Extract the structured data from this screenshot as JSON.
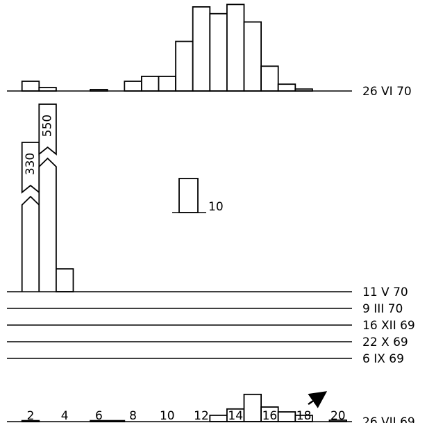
{
  "chart_data": {
    "type": "bar",
    "xticks": [
      2,
      4,
      6,
      8,
      10,
      12,
      14,
      16,
      18,
      20
    ],
    "x_range": [
      1,
      21
    ],
    "bin_width": 1,
    "y_scale_bar_value": 10,
    "y_scale_bar_label": "10",
    "series": [
      {
        "name": "26 VI 70",
        "bins": [
          {
            "x": 2,
            "value": 2
          },
          {
            "x": 3,
            "value": 0.7
          },
          {
            "x": 6,
            "value": 0.3
          },
          {
            "x": 8,
            "value": 2
          },
          {
            "x": 9,
            "value": 3
          },
          {
            "x": 10,
            "value": 3
          },
          {
            "x": 11,
            "value": 10.2
          },
          {
            "x": 12,
            "value": 17.3
          },
          {
            "x": 13,
            "value": 15.9
          },
          {
            "x": 14,
            "value": 17.8
          },
          {
            "x": 15,
            "value": 14.2
          },
          {
            "x": 16,
            "value": 5.1
          },
          {
            "x": 17,
            "value": 1.4
          },
          {
            "x": 18,
            "value": 0.4
          }
        ]
      },
      {
        "name": "11 V 70",
        "bins": [
          {
            "x": 2,
            "value": 330,
            "broken": true,
            "label": "330"
          },
          {
            "x": 3,
            "value": 550,
            "broken": true,
            "label": "550"
          },
          {
            "x": 4,
            "value": 4.7
          }
        ]
      },
      {
        "name": "9 III 70",
        "bins": []
      },
      {
        "name": "16 XII 69",
        "bins": []
      },
      {
        "name": "22 X 69",
        "bins": []
      },
      {
        "name": "6 IX 69",
        "bins": []
      },
      {
        "name": "26 VII 69",
        "bins": [
          {
            "x": 2,
            "value": 0.2
          },
          {
            "x": 6.5,
            "value": 0.2
          },
          {
            "x": 13,
            "value": 1.3
          },
          {
            "x": 14,
            "value": 2.6
          },
          {
            "x": 15,
            "value": 5.6
          },
          {
            "x": 16,
            "value": 3.0
          },
          {
            "x": 17,
            "value": 2.0
          },
          {
            "x": 18,
            "value": 1.3
          },
          {
            "x": 20,
            "value": 0.3
          }
        ]
      }
    ],
    "annotation": "arrow pointing up-right above bins 18-19 of 26 VII 69"
  }
}
